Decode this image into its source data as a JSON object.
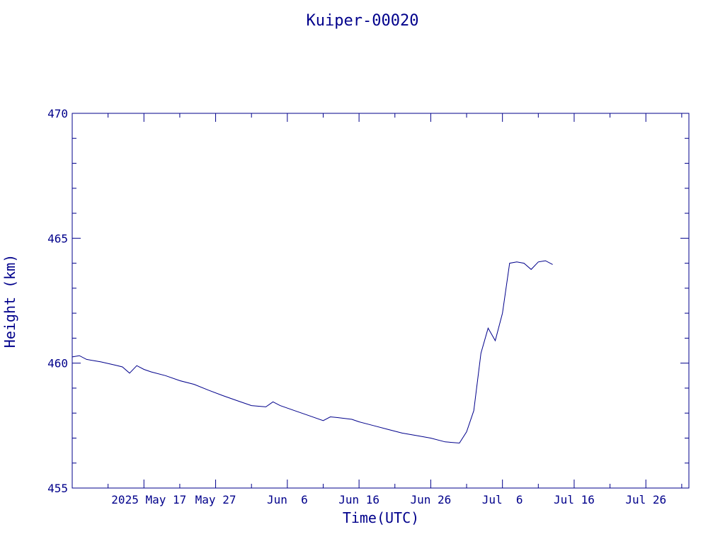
{
  "chart_data": {
    "type": "line",
    "title": "Kuiper-00020",
    "xlabel": "Time(UTC)",
    "ylabel": "Height (km)",
    "line_color": "#00008b",
    "axis_color": "#00008b",
    "background": "#ffffff",
    "xlim": [
      "2025-05-07",
      "2025-08-01"
    ],
    "ylim": [
      455,
      470
    ],
    "grid": false,
    "legend": "none",
    "y_ticks": [
      455,
      460,
      465,
      470
    ],
    "x_ticks": [
      {
        "date": "2025-05-17",
        "label": "2025 May 17"
      },
      {
        "date": "2025-05-27",
        "label": "May 27"
      },
      {
        "date": "2025-06-06",
        "label": "Jun  6"
      },
      {
        "date": "2025-06-16",
        "label": "Jun 16"
      },
      {
        "date": "2025-06-26",
        "label": "Jun 26"
      },
      {
        "date": "2025-07-06",
        "label": "Jul  6"
      },
      {
        "date": "2025-07-16",
        "label": "Jul 16"
      },
      {
        "date": "2025-07-26",
        "label": "Jul 26"
      }
    ],
    "series": [
      {
        "x": [
          "2025-05-07",
          "2025-05-08",
          "2025-05-09",
          "2025-05-11",
          "2025-05-13",
          "2025-05-14",
          "2025-05-15",
          "2025-05-16",
          "2025-05-17",
          "2025-05-18",
          "2025-05-20",
          "2025-05-22",
          "2025-05-24",
          "2025-05-26",
          "2025-05-28",
          "2025-05-30",
          "2025-06-01",
          "2025-06-03",
          "2025-06-04",
          "2025-06-05",
          "2025-06-07",
          "2025-06-09",
          "2025-06-11",
          "2025-06-12",
          "2025-06-13",
          "2025-06-15",
          "2025-06-16",
          "2025-06-18",
          "2025-06-20",
          "2025-06-22",
          "2025-06-24",
          "2025-06-26",
          "2025-06-28",
          "2025-06-30",
          "2025-07-01",
          "2025-07-02",
          "2025-07-03",
          "2025-07-04",
          "2025-07-05",
          "2025-07-06",
          "2025-07-07",
          "2025-07-08",
          "2025-07-09",
          "2025-07-10",
          "2025-07-11",
          "2025-07-12",
          "2025-07-13"
        ],
        "y": [
          460.25,
          460.3,
          460.15,
          460.05,
          459.92,
          459.85,
          459.6,
          459.9,
          459.75,
          459.65,
          459.5,
          459.3,
          459.15,
          458.92,
          458.7,
          458.5,
          458.3,
          458.25,
          458.45,
          458.3,
          458.1,
          457.9,
          457.7,
          457.85,
          457.82,
          457.75,
          457.65,
          457.5,
          457.35,
          457.2,
          457.1,
          457.0,
          456.85,
          456.8,
          457.25,
          458.1,
          460.4,
          461.4,
          460.9,
          462.0,
          464.0,
          464.05,
          464.0,
          463.75,
          464.05,
          464.1,
          463.95
        ]
      }
    ]
  }
}
